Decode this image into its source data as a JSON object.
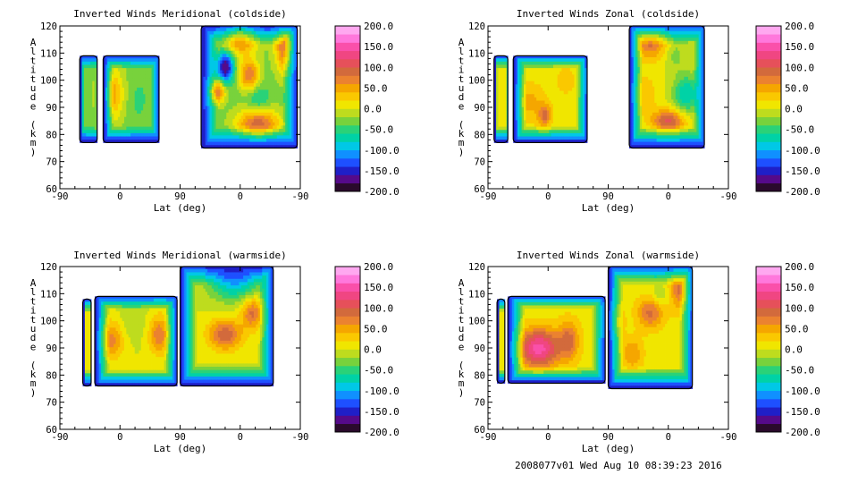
{
  "footer": {
    "run_info": "2008077v01 Wed Aug 10 08:39:23 2016"
  },
  "colorbar": {
    "labels": [
      "200.0",
      "150.0",
      "100.0",
      "50.0",
      "0.0",
      "-50.0",
      "-100.0",
      "-150.0",
      "-200.0"
    ],
    "min": -200,
    "max": 200,
    "step": 20,
    "colors": [
      "#2a0a2c",
      "#550a8a",
      "#1f1fc8",
      "#1e50ff",
      "#1090ff",
      "#00c8e6",
      "#00d2a6",
      "#2ad278",
      "#78d23c",
      "#bedc1e",
      "#f0e600",
      "#fac800",
      "#f5a600",
      "#eb8230",
      "#d26a3c",
      "#e6505a",
      "#f04682",
      "#fa50aa",
      "#ff78dc",
      "#ffa8f0"
    ]
  },
  "chart_data": [
    {
      "type": "heatmap",
      "title": "Inverted Winds Meridional (coldside)",
      "xlabel": "Lat (deg)",
      "ylabel": "Altitude (km)",
      "xtick_labels": [
        "-90",
        "0",
        "90",
        "0",
        "-90"
      ],
      "yticks": [
        60,
        70,
        80,
        90,
        100,
        110,
        120
      ],
      "ylim": [
        60,
        120
      ],
      "x_range": [
        0,
        4
      ],
      "segments": [
        {
          "x0": 0.33,
          "x1": 0.62,
          "y0": 77,
          "y1": 109
        },
        {
          "x0": 0.72,
          "x1": 1.65,
          "y0": 77,
          "y1": 109
        },
        {
          "x0": 2.35,
          "x1": 3.95,
          "y0": 75,
          "y1": 120
        }
      ],
      "features": [
        {
          "x": 0.85,
          "y": 95,
          "v": 55,
          "sx": 0.15,
          "sy": 7
        },
        {
          "x": 1.3,
          "y": 93,
          "v": -45,
          "sx": 0.12,
          "sy": 6
        },
        {
          "x": 2.75,
          "y": 105,
          "v": -185,
          "sx": 0.1,
          "sy": 4
        },
        {
          "x": 3.0,
          "y": 117,
          "v": 95,
          "sx": 0.2,
          "sy": 5
        },
        {
          "x": 3.15,
          "y": 102,
          "v": 80,
          "sx": 0.12,
          "sy": 4
        },
        {
          "x": 3.3,
          "y": 93,
          "v": -70,
          "sx": 0.12,
          "sy": 4
        },
        {
          "x": 3.3,
          "y": 84,
          "v": 95,
          "sx": 0.25,
          "sy": 4
        },
        {
          "x": 2.6,
          "y": 96,
          "v": 95,
          "sx": 0.1,
          "sy": 3
        },
        {
          "x": 3.75,
          "y": 113,
          "v": 90,
          "sx": 0.12,
          "sy": 7
        }
      ],
      "base": -30
    },
    {
      "type": "heatmap",
      "title": "Inverted Winds Zonal (coldside)",
      "xlabel": "Lat (deg)",
      "ylabel": "Altitude (km)",
      "xtick_labels": [
        "-90",
        "0",
        "90",
        "0",
        "-90"
      ],
      "yticks": [
        60,
        70,
        80,
        90,
        100,
        110,
        120
      ],
      "ylim": [
        60,
        120
      ],
      "x_range": [
        0,
        4
      ],
      "segments": [
        {
          "x0": 0.1,
          "x1": 0.33,
          "y0": 77,
          "y1": 109
        },
        {
          "x0": 0.42,
          "x1": 1.65,
          "y0": 77,
          "y1": 109
        },
        {
          "x0": 2.35,
          "x1": 3.6,
          "y0": 75,
          "y1": 120
        }
      ],
      "features": [
        {
          "x": 0.7,
          "y": 92,
          "v": 45,
          "sx": 0.2,
          "sy": 6
        },
        {
          "x": 0.95,
          "y": 87,
          "v": 75,
          "sx": 0.08,
          "sy": 3
        },
        {
          "x": 1.3,
          "y": 100,
          "v": 30,
          "sx": 0.15,
          "sy": 5
        },
        {
          "x": 2.7,
          "y": 115,
          "v": 90,
          "sx": 0.2,
          "sy": 5
        },
        {
          "x": 3.1,
          "y": 110,
          "v": -30,
          "sx": 0.12,
          "sy": 4
        },
        {
          "x": 3.0,
          "y": 85,
          "v": 105,
          "sx": 0.2,
          "sy": 3
        },
        {
          "x": 3.3,
          "y": 95,
          "v": -80,
          "sx": 0.15,
          "sy": 5
        },
        {
          "x": 2.6,
          "y": 95,
          "v": 40,
          "sx": 0.15,
          "sy": 5
        }
      ],
      "base": 0
    },
    {
      "type": "heatmap",
      "title": "Inverted Winds Meridional (warmside)",
      "xlabel": "Lat (deg)",
      "ylabel": "Altitude (km)",
      "xtick_labels": [
        "-90",
        "0",
        "90",
        "0",
        "-90"
      ],
      "yticks": [
        60,
        70,
        80,
        90,
        100,
        110,
        120
      ],
      "ylim": [
        60,
        120
      ],
      "x_range": [
        0,
        4
      ],
      "segments": [
        {
          "x0": 0.38,
          "x1": 0.52,
          "y0": 76,
          "y1": 108
        },
        {
          "x0": 0.58,
          "x1": 1.95,
          "y0": 76,
          "y1": 109
        },
        {
          "x0": 2.0,
          "x1": 3.55,
          "y0": 76,
          "y1": 120
        }
      ],
      "features": [
        {
          "x": 0.85,
          "y": 93,
          "v": 70,
          "sx": 0.15,
          "sy": 5
        },
        {
          "x": 1.65,
          "y": 95,
          "v": 75,
          "sx": 0.12,
          "sy": 5
        },
        {
          "x": 2.75,
          "y": 95,
          "v": 95,
          "sx": 0.2,
          "sy": 4
        },
        {
          "x": 3.2,
          "y": 103,
          "v": 85,
          "sx": 0.12,
          "sy": 4
        },
        {
          "x": 2.9,
          "y": 115,
          "v": -100,
          "sx": 0.3,
          "sy": 5
        },
        {
          "x": 1.2,
          "y": 100,
          "v": -20,
          "sx": 0.15,
          "sy": 5
        }
      ],
      "base": 0
    },
    {
      "type": "heatmap",
      "title": "Inverted Winds Zonal (warmside)",
      "xlabel": "Lat (deg)",
      "ylabel": "Altitude (km)",
      "xtick_labels": [
        "-90",
        "0",
        "90",
        "0",
        "-90"
      ],
      "yticks": [
        60,
        70,
        80,
        90,
        100,
        110,
        120
      ],
      "ylim": [
        60,
        120
      ],
      "x_range": [
        0,
        4
      ],
      "segments": [
        {
          "x0": 0.15,
          "x1": 0.28,
          "y0": 77,
          "y1": 108
        },
        {
          "x0": 0.33,
          "x1": 1.95,
          "y0": 77,
          "y1": 109
        },
        {
          "x0": 2.0,
          "x1": 3.4,
          "y0": 75,
          "y1": 120
        }
      ],
      "features": [
        {
          "x": 0.85,
          "y": 90,
          "v": 150,
          "sx": 0.25,
          "sy": 5
        },
        {
          "x": 1.35,
          "y": 93,
          "v": 80,
          "sx": 0.12,
          "sy": 5
        },
        {
          "x": 2.1,
          "y": 100,
          "v": 70,
          "sx": 0.1,
          "sy": 4
        },
        {
          "x": 2.7,
          "y": 103,
          "v": 85,
          "sx": 0.15,
          "sy": 4
        },
        {
          "x": 2.4,
          "y": 88,
          "v": 60,
          "sx": 0.12,
          "sy": 4
        },
        {
          "x": 3.2,
          "y": 112,
          "v": 90,
          "sx": 0.15,
          "sy": 5
        },
        {
          "x": 2.9,
          "y": 110,
          "v": -30,
          "sx": 0.12,
          "sy": 3
        }
      ],
      "base": 10
    }
  ]
}
